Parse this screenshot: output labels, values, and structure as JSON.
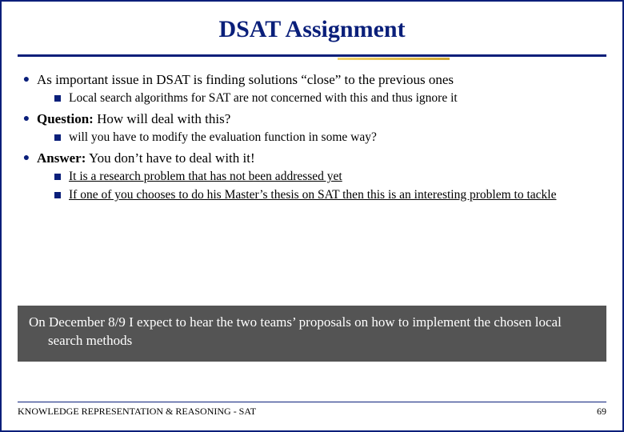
{
  "colors": {
    "border": "#0a1f7a",
    "title": "#0a1f7a",
    "hr": "#0a1f7a",
    "l1_marker": "#0a1f7a",
    "l2_marker": "#0a1f7a",
    "callout_bg": "#545454",
    "callout_fg": "#ffffff",
    "footer_line": "#0a1f7a"
  },
  "title": "DSAT Assignment",
  "bullets": {
    "b1": {
      "text": "As important issue in DSAT is finding solutions “close” to the previous ones",
      "sub1": "Local search algorithms for SAT are not concerned with this and thus ignore it"
    },
    "b2": {
      "label": "Question:",
      "text": " How will deal with this?",
      "sub1": "will you have to modify the evaluation function in some way?"
    },
    "b3": {
      "label": "Answer:",
      "text": " You don’t have to deal with it!",
      "sub1": "It is a research problem that has not been addressed yet",
      "sub2": "If one of you chooses to do his Master’s thesis on SAT then this is an interesting problem to tackle"
    }
  },
  "callout": "On December 8/9 I expect to hear the two teams’ proposals on how to implement the chosen local search methods",
  "footer": {
    "left": "KNOWLEDGE REPRESENTATION & REASONING - SAT",
    "page": "69"
  }
}
